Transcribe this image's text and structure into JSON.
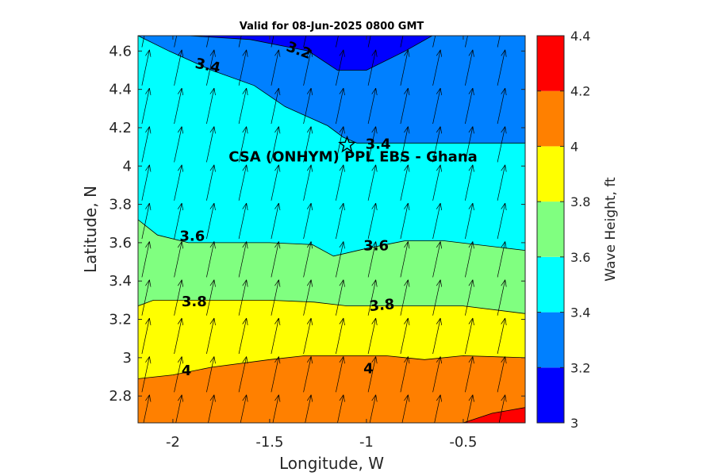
{
  "chart_data": {
    "type": "filled-contour",
    "title": "Valid for 08-Jun-2025 0800 GMT",
    "xlabel": "Longitude, W",
    "ylabel": "Latitude, N",
    "colorbar_label": "Wave Height, ft",
    "xlim": [
      -2.18,
      -0.18
    ],
    "ylim": [
      2.66,
      4.68
    ],
    "x_ticks": [
      -2,
      -1.5,
      -1,
      -0.5
    ],
    "x_tick_labels": [
      "-2",
      "-1.5",
      "-1",
      "-0.5"
    ],
    "y_ticks": [
      2.8,
      3.0,
      3.2,
      3.4,
      3.6,
      3.8,
      4.0,
      4.2,
      4.4,
      4.6
    ],
    "y_tick_labels": [
      "2.8",
      "3",
      "3.2",
      "3.4",
      "3.6",
      "3.8",
      "4",
      "4.2",
      "4.4",
      "4.6"
    ],
    "colorbar": {
      "min": 3.0,
      "max": 4.4,
      "ticks": [
        3.0,
        3.2,
        3.4,
        3.6,
        3.8,
        4.0,
        4.2,
        4.4
      ],
      "tick_labels": [
        "3",
        "3.2",
        "3.4",
        "3.6",
        "3.8",
        "4",
        "4.2",
        "4.4"
      ],
      "colors": [
        "#0000ff",
        "#0080ff",
        "#00ffff",
        "#80ff80",
        "#ffff00",
        "#ff8000",
        "#ff0000"
      ]
    },
    "levels": [
      {
        "range": [
          3.0,
          3.2
        ],
        "color": "#0000ff"
      },
      {
        "range": [
          3.2,
          3.4
        ],
        "color": "#0080ff"
      },
      {
        "range": [
          3.4,
          3.6
        ],
        "color": "#00ffff"
      },
      {
        "range": [
          3.6,
          3.8
        ],
        "color": "#80ff80"
      },
      {
        "range": [
          3.8,
          4.0
        ],
        "color": "#ffff00"
      },
      {
        "range": [
          4.0,
          4.2
        ],
        "color": "#ff8000"
      },
      {
        "range": [
          4.2,
          4.4
        ],
        "color": "#ff0000"
      }
    ],
    "contours": [
      {
        "level": 3.2,
        "points": [
          [
            -1.92,
            4.68
          ],
          [
            -1.6,
            4.66
          ],
          [
            -1.3,
            4.6
          ],
          [
            -1.15,
            4.5
          ],
          [
            -1.0,
            4.5
          ],
          [
            -0.8,
            4.6
          ],
          [
            -0.66,
            4.68
          ]
        ]
      },
      {
        "level": 3.4,
        "points": [
          [
            -2.18,
            4.68
          ],
          [
            -2.02,
            4.6
          ],
          [
            -1.8,
            4.5
          ],
          [
            -1.58,
            4.42
          ],
          [
            -1.42,
            4.31
          ],
          [
            -1.2,
            4.21
          ],
          [
            -1.12,
            4.15
          ],
          [
            -1.05,
            4.12
          ],
          [
            -0.18,
            4.12
          ]
        ]
      },
      {
        "level": 3.6,
        "points": [
          [
            -2.18,
            3.72
          ],
          [
            -2.08,
            3.64
          ],
          [
            -1.92,
            3.6
          ],
          [
            -1.72,
            3.6
          ],
          [
            -1.5,
            3.6
          ],
          [
            -1.28,
            3.59
          ],
          [
            -1.17,
            3.53
          ],
          [
            -1.0,
            3.57
          ],
          [
            -0.8,
            3.61
          ],
          [
            -0.6,
            3.61
          ],
          [
            -0.18,
            3.56
          ]
        ]
      },
      {
        "level": 3.8,
        "points": [
          [
            -2.18,
            3.27
          ],
          [
            -2.1,
            3.3
          ],
          [
            -1.92,
            3.3
          ],
          [
            -1.7,
            3.3
          ],
          [
            -1.5,
            3.3
          ],
          [
            -1.27,
            3.29
          ],
          [
            -1.1,
            3.27
          ],
          [
            -0.9,
            3.27
          ],
          [
            -0.7,
            3.27
          ],
          [
            -0.5,
            3.27
          ],
          [
            -0.18,
            3.23
          ]
        ]
      },
      {
        "level": 4.0,
        "points": [
          [
            -2.18,
            2.89
          ],
          [
            -2.0,
            2.91
          ],
          [
            -1.8,
            2.95
          ],
          [
            -1.5,
            2.99
          ],
          [
            -1.32,
            3.01
          ],
          [
            -1.1,
            3.01
          ],
          [
            -0.9,
            3.01
          ],
          [
            -0.7,
            2.99
          ],
          [
            -0.5,
            3.01
          ],
          [
            -0.18,
            3.0
          ]
        ]
      },
      {
        "level": 4.2,
        "points": [
          [
            -0.5,
            2.66
          ],
          [
            -0.35,
            2.71
          ],
          [
            -0.18,
            2.74
          ]
        ]
      }
    ],
    "contour_labels": [
      {
        "text": "3.2",
        "lon": -1.35,
        "lat": 4.6,
        "angle": 20
      },
      {
        "text": "3.4",
        "lon": -1.82,
        "lat": 4.52,
        "angle": 12
      },
      {
        "text": "3.4",
        "lon": -0.94,
        "lat": 4.11,
        "angle": 0
      },
      {
        "text": "3.6",
        "lon": -1.9,
        "lat": 3.63,
        "angle": 0
      },
      {
        "text": "3.6",
        "lon": -0.95,
        "lat": 3.58,
        "angle": 0
      },
      {
        "text": "3.8",
        "lon": -1.89,
        "lat": 3.29,
        "angle": 0
      },
      {
        "text": "3.8",
        "lon": -0.92,
        "lat": 3.27,
        "angle": -5
      },
      {
        "text": "4",
        "lon": -1.93,
        "lat": 2.93,
        "angle": 0
      },
      {
        "text": "4",
        "lon": -0.99,
        "lat": 2.94,
        "angle": 0
      }
    ],
    "site": {
      "label": "CSA (ONHYM) PPL EBS  - Ghana",
      "lon": -1.1,
      "lat": 4.11,
      "marker": "star"
    },
    "vector_field": {
      "description_free": true,
      "direction_deg_from_north": 12,
      "lon_spacing": 0.167,
      "lat_spacing": 0.2
    }
  }
}
